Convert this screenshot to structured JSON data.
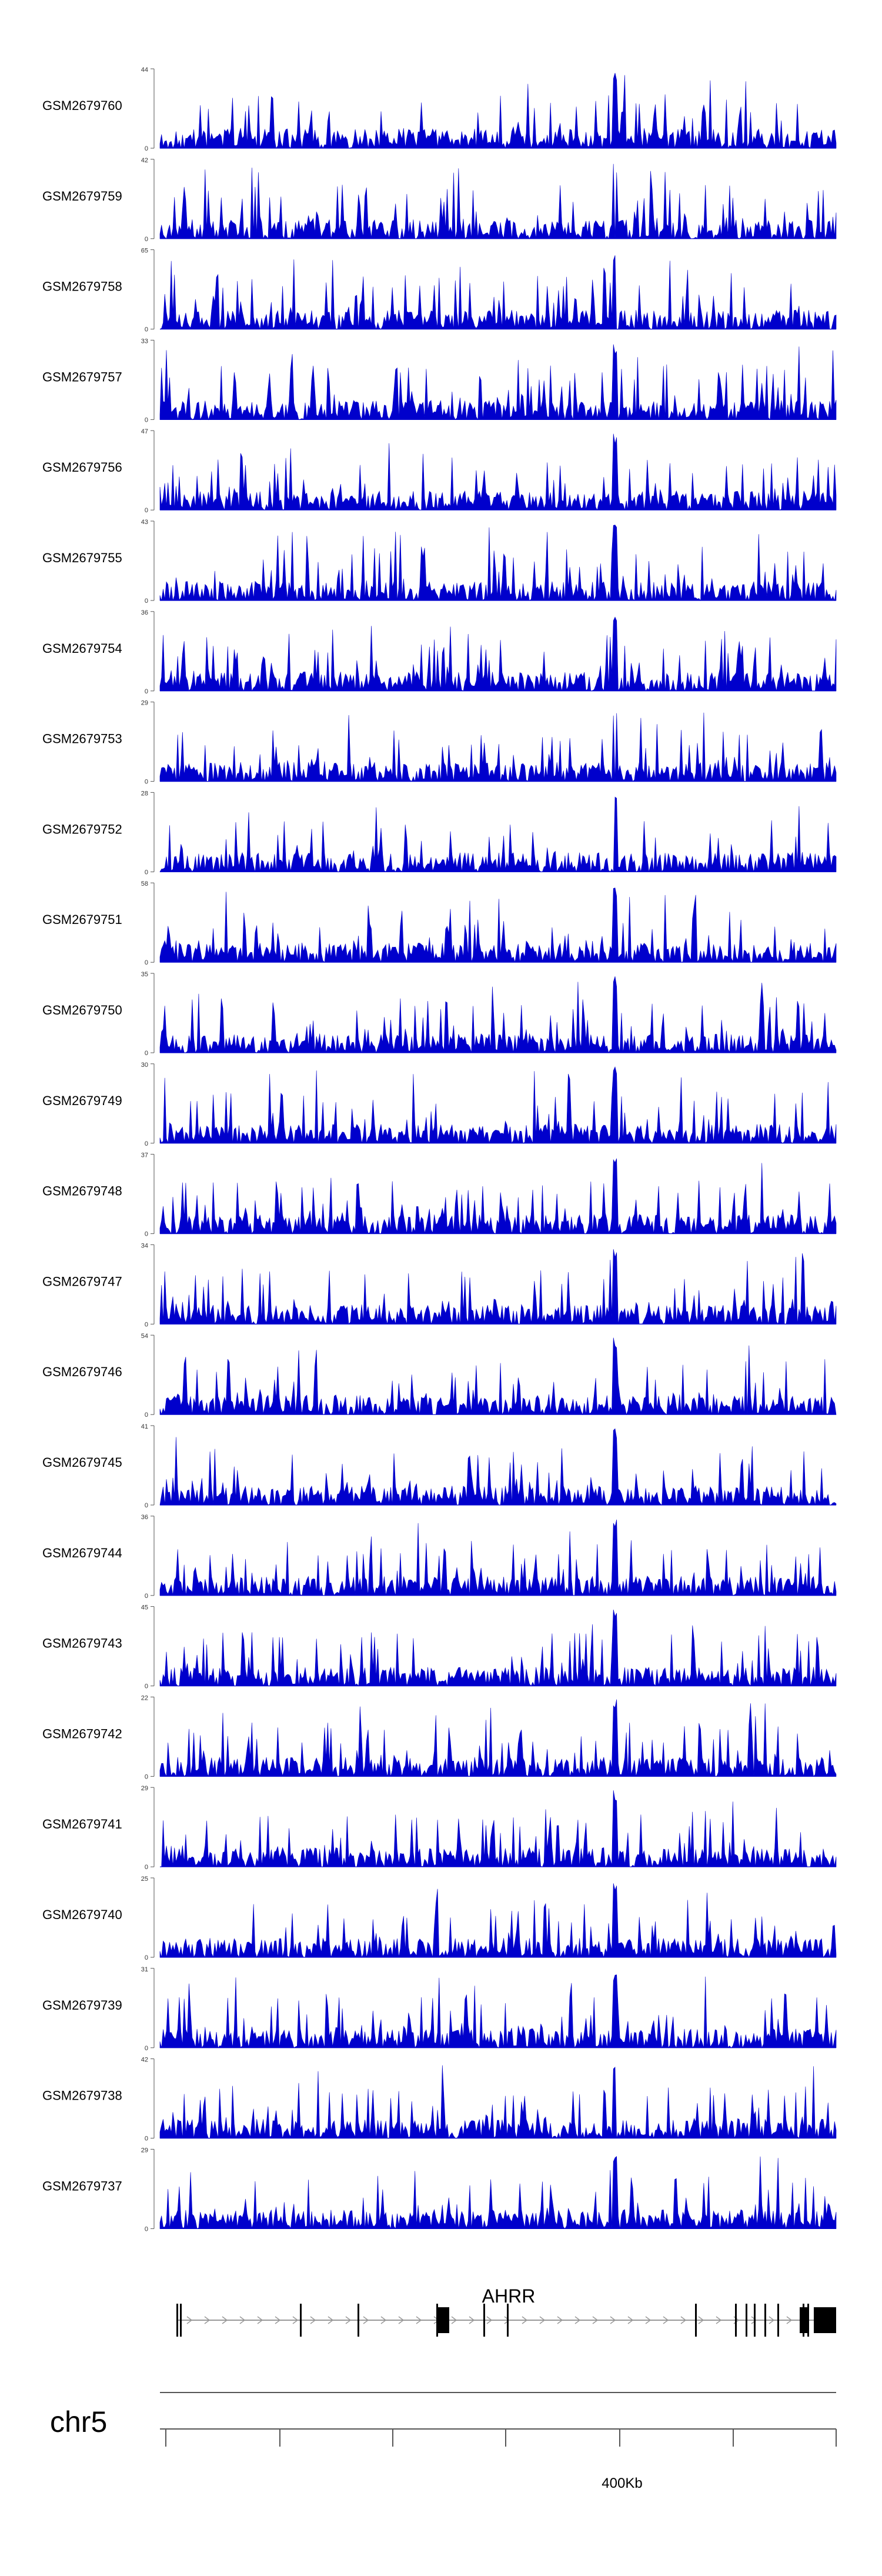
{
  "figure": {
    "track_color": "#0000cc",
    "axis_color": "#555555",
    "gene_color": "#000000",
    "intron_color": "#999999"
  },
  "chart_data": {
    "type": "area",
    "tracks": [
      {
        "name": "GSM2679760",
        "ymax": "44",
        "ymin": "0",
        "seed": 11
      },
      {
        "name": "GSM2679759",
        "ymax": "42",
        "ymin": "0",
        "seed": 23
      },
      {
        "name": "GSM2679758",
        "ymax": "65",
        "ymin": "0",
        "seed": 37
      },
      {
        "name": "GSM2679757",
        "ymax": "33",
        "ymin": "0",
        "seed": 41
      },
      {
        "name": "GSM2679756",
        "ymax": "47",
        "ymin": "0",
        "seed": 53
      },
      {
        "name": "GSM2679755",
        "ymax": "43",
        "ymin": "0",
        "seed": 67
      },
      {
        "name": "GSM2679754",
        "ymax": "36",
        "ymin": "0",
        "seed": 71
      },
      {
        "name": "GSM2679753",
        "ymax": "29",
        "ymin": "0",
        "seed": 83
      },
      {
        "name": "GSM2679752",
        "ymax": "28",
        "ymin": "0",
        "seed": 97
      },
      {
        "name": "GSM2679751",
        "ymax": "58",
        "ymin": "0",
        "seed": 101
      },
      {
        "name": "GSM2679750",
        "ymax": "35",
        "ymin": "0",
        "seed": 113
      },
      {
        "name": "GSM2679749",
        "ymax": "30",
        "ymin": "0",
        "seed": 127
      },
      {
        "name": "GSM2679748",
        "ymax": "37",
        "ymin": "0",
        "seed": 131
      },
      {
        "name": "GSM2679747",
        "ymax": "34",
        "ymin": "0",
        "seed": 149
      },
      {
        "name": "GSM2679746",
        "ymax": "54",
        "ymin": "0",
        "seed": 151
      },
      {
        "name": "GSM2679745",
        "ymax": "41",
        "ymin": "0",
        "seed": 163
      },
      {
        "name": "GSM2679744",
        "ymax": "36",
        "ymin": "0",
        "seed": 173
      },
      {
        "name": "GSM2679743",
        "ymax": "45",
        "ymin": "0",
        "seed": 181
      },
      {
        "name": "GSM2679742",
        "ymax": "22",
        "ymin": "0",
        "seed": 191
      },
      {
        "name": "GSM2679741",
        "ymax": "29",
        "ymin": "0",
        "seed": 199
      },
      {
        "name": "GSM2679740",
        "ymax": "25",
        "ymin": "0",
        "seed": 211
      },
      {
        "name": "GSM2679739",
        "ymax": "31",
        "ymin": "0",
        "seed": 223
      },
      {
        "name": "GSM2679738",
        "ymax": "42",
        "ymin": "0",
        "seed": 227
      },
      {
        "name": "GSM2679737",
        "ymax": "29",
        "ymin": "0",
        "seed": 239
      }
    ],
    "gene": {
      "name": "AHRR",
      "strand": "+"
    },
    "chromosome": "chr5",
    "axis": {
      "tick_label": "400Kb"
    },
    "grid": false,
    "legend": "none"
  }
}
